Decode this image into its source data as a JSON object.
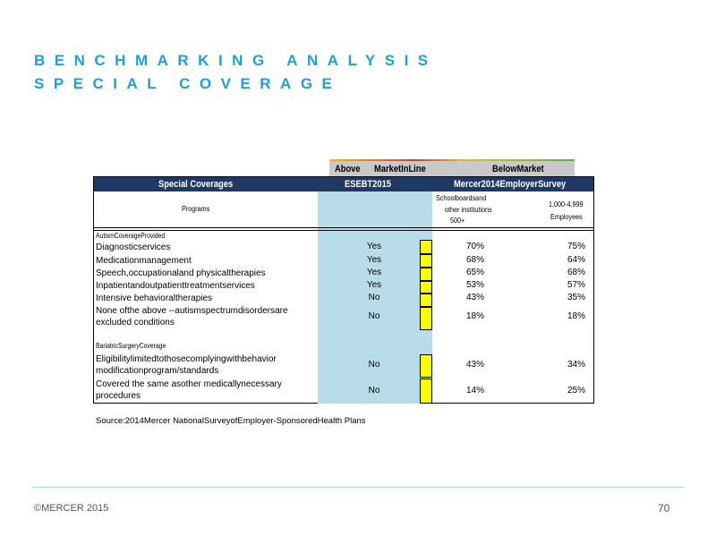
{
  "title": {
    "line1": "BENCHMARKING ANALYSIS",
    "line2": "SPECIAL COVERAGE"
  },
  "legend": {
    "above": "Above",
    "inline": "MarketInLine",
    "below": "BelowMarket"
  },
  "header": {
    "special": "Special     Coverages",
    "esebt": "ESEBT2015",
    "mercer": "Mercer2014EmployerSurvey"
  },
  "colheads": {
    "programs": "Programs",
    "school_line1": "Schoolboardsand",
    "school_line2": "other     institutions",
    "school_line3": "500+",
    "emp_line1": "1,000-4,999",
    "emp_line2": "Employees"
  },
  "sections": {
    "autism": "AutismCoverageProvided",
    "bariatric": "BariatricSurgeryCoverage"
  },
  "rows": [
    {
      "label": "Diagnosticservices",
      "esebt": "Yes",
      "school": "70%",
      "emp": "75%"
    },
    {
      "label": "Medicationmanagement",
      "esebt": "Yes",
      "school": "68%",
      "emp": "64%"
    },
    {
      "label": "Speech,occupationaland physicaltherapies",
      "esebt": "Yes",
      "school": "65%",
      "emp": "68%"
    },
    {
      "label": "Inpatientandoutpatienttreatmentservices",
      "esebt": "Yes",
      "school": "53%",
      "emp": "57%"
    },
    {
      "label": "Intensive behavioraltherapies",
      "esebt": "No",
      "school": "43%",
      "emp": "35%"
    },
    {
      "label_l1": "None ofthe above --autismspectrumdisordersare",
      "label_l2": "excluded conditions",
      "esebt": "No",
      "school": "18%",
      "emp": "18%"
    },
    {
      "label_l1": "Eligibilitylimitedtothosecomplyingwithbehavior",
      "label_l2": "modificationprogram/standards",
      "esebt": "No",
      "school": "43%",
      "emp": "34%"
    },
    {
      "label_l1": "Covered the same asother medicallynecessary",
      "label_l2": "procedures",
      "esebt": "No",
      "school": "14%",
      "emp": "25%"
    }
  ],
  "source": "Source:2014Mercer NationalSurveyofEmployer-SponsoredHealth Plans",
  "footer": {
    "copyright": "©MERCER  2015",
    "page": "70"
  }
}
